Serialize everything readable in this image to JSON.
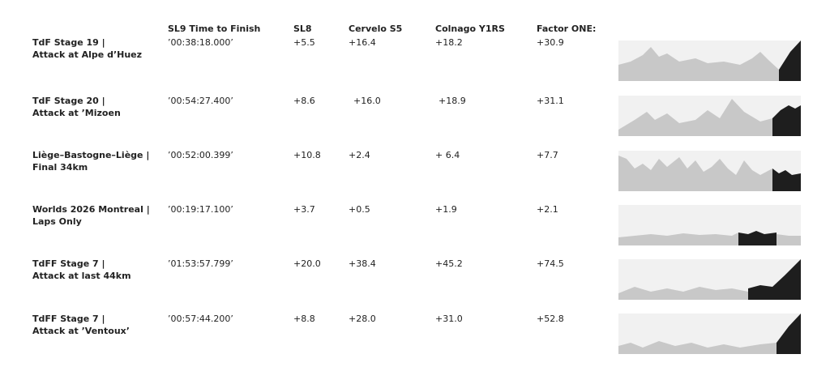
{
  "table": {
    "header": [
      "SL9 Time to Finish",
      "SL8",
      "Cervelo S5",
      "Colnago Y1RS",
      "Factor ONE:"
    ],
    "rows": [
      {
        "label": [
          "TdF Stage 19 |",
          "Attack at Alpe d’Huez"
        ],
        "cells": [
          "’00:38:18.000’",
          "+5.5",
          "+16.4",
          "+18.2",
          "+30.9"
        ]
      },
      {
        "label": [
          "TdF Stage 20 |",
          "Attack at ’Mizoen"
        ],
        "cells": [
          "’00:54:27.400’",
          "+8.6",
          "+16.0",
          "+18.9",
          "+31.1"
        ]
      },
      {
        "label": [
          "Liège–Bastogne–Liège |",
          "Final 34km"
        ],
        "cells": [
          "’00:52:00.399’",
          "+10.8",
          "+2.4",
          "+ 6.4",
          "+7.7"
        ]
      },
      {
        "label": [
          "Worlds 2026 Montreal |",
          "Laps Only"
        ],
        "cells": [
          "’00:19:17.100’",
          "+3.7",
          "+0.5",
          "+1.9",
          "+2.1"
        ]
      },
      {
        "label": [
          "TdFF Stage 7 |",
          "Attack at last 44km"
        ],
        "cells": [
          "’01:53:57.799’",
          "+20.0",
          "+38.4",
          "+45.2",
          "+74.5"
        ]
      },
      {
        "label": [
          "TdFF Stage 7 |",
          "Attack at ’Ventoux’"
        ],
        "cells": [
          "’00:57:44.200’",
          "+8.8",
          "+28.0",
          "+31.0",
          "+52.8"
        ]
      }
    ]
  }
}
